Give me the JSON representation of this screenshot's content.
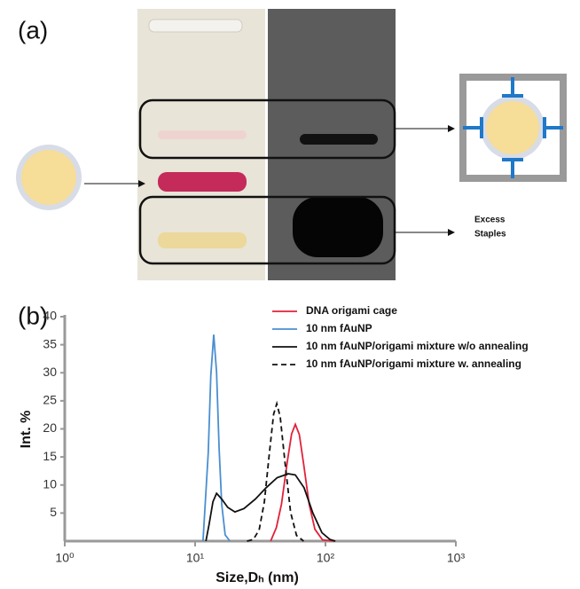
{
  "figure": {
    "panel_labels": [
      "(a)",
      "(b)"
    ],
    "annotation_lines": [
      "Excess",
      "Staples"
    ]
  },
  "chart_data": {
    "type": "line",
    "x_label": "Size,Dₕ (nm)",
    "y_label": "Int. %",
    "log_x": true,
    "xlim": [
      1,
      1000
    ],
    "xticks": [
      {
        "value": 1,
        "label": "10⁰"
      },
      {
        "value": 10,
        "label": "10¹"
      },
      {
        "value": 100,
        "label": "10²"
      },
      {
        "value": 1000,
        "label": "10³"
      }
    ],
    "ylim": [
      0,
      40
    ],
    "yticks": [
      5,
      10,
      15,
      20,
      25,
      30,
      35,
      40
    ],
    "legend": "upper right",
    "series": [
      {
        "name": "DNA origami cage",
        "color": "#e0223a",
        "linestyle": "solid",
        "x": [
          38,
          42,
          46,
          51,
          55,
          58.7,
          63,
          68,
          75,
          83,
          95,
          119
        ],
        "values": [
          0,
          2.4,
          6.6,
          14.2,
          19.1,
          20.8,
          19.0,
          13.7,
          6.6,
          2.1,
          0.2,
          0
        ]
      },
      {
        "name": "10 nm fAuNP",
        "color": "#4a8fd0",
        "linestyle": "solid",
        "x": [
          11.5,
          12.6,
          13.2,
          13.9,
          14.6,
          15.3,
          16.0,
          17.0,
          18.5
        ],
        "values": [
          0,
          15.7,
          29.5,
          36.8,
          30.1,
          16.4,
          6.6,
          1.1,
          0
        ]
      },
      {
        "name": "10 nm fAuNP/origami mixture w/o annealing",
        "color": "#111111",
        "linestyle": "solid",
        "x": [
          12.1,
          12.8,
          13.7,
          14.6,
          16.0,
          17.8,
          20.2,
          23.7,
          29.0,
          35.0,
          42.6,
          51.8,
          58.7,
          68.6,
          80.1,
          94,
          108,
          119
        ],
        "values": [
          0,
          3,
          7,
          8.5,
          7.5,
          6,
          5.2,
          5.8,
          7.5,
          9.5,
          11.3,
          12.0,
          11.8,
          9.5,
          5,
          1.5,
          0.3,
          0
        ]
      },
      {
        "name": "10 nm fAuNP/origami mixture w. annealing",
        "color": "#111111",
        "linestyle": "dashed",
        "x": [
          25,
          28,
          31,
          34,
          37,
          40,
          42.3,
          45,
          49,
          54,
          60,
          68
        ],
        "values": [
          0,
          0.3,
          2.0,
          7.0,
          15.3,
          22.6,
          24.5,
          22.1,
          13.8,
          5.1,
          1.0,
          0
        ]
      }
    ]
  }
}
